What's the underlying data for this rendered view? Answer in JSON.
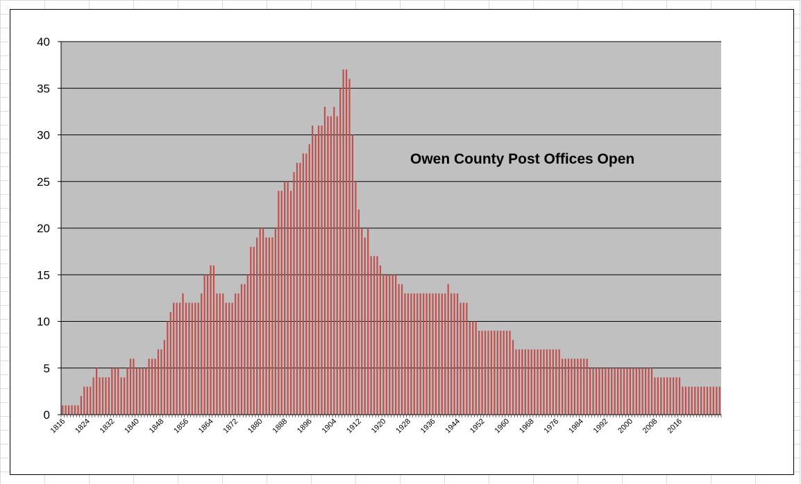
{
  "chart_data": {
    "type": "bar",
    "title": "Owen County Post Offices Open",
    "xlabel": "",
    "ylabel": "",
    "x_start": 1816,
    "x_end": 2018,
    "x_tick_labels": [
      "1816",
      "1824",
      "1832",
      "1840",
      "1848",
      "1856",
      "1864",
      "1872",
      "1880",
      "1888",
      "1896",
      "1904",
      "1912",
      "1920",
      "1928",
      "1936",
      "1944",
      "1952",
      "1960",
      "1968",
      "1976",
      "1984",
      "1992",
      "2000",
      "2008",
      "2016"
    ],
    "y_tick_labels": [
      "0",
      "5",
      "10",
      "15",
      "20",
      "25",
      "30",
      "35",
      "40"
    ],
    "ylim": [
      0,
      40
    ],
    "grid": true,
    "legend": "none",
    "colors": {
      "bar": "#c0504d",
      "plot_bg": "#c0c0c0",
      "grid": "#000000"
    },
    "values": [
      1,
      1,
      1,
      1,
      1,
      1,
      2,
      3,
      3,
      3,
      4,
      5,
      4,
      4,
      4,
      4,
      5,
      5,
      5,
      4,
      4,
      5,
      6,
      6,
      5,
      5,
      5,
      5,
      6,
      6,
      6,
      7,
      7,
      8,
      10,
      11,
      12,
      12,
      12,
      13,
      12,
      12,
      12,
      12,
      12,
      13,
      15,
      15,
      16,
      16,
      13,
      13,
      13,
      12,
      12,
      12,
      13,
      13,
      14,
      14,
      15,
      18,
      18,
      19,
      20,
      20,
      19,
      19,
      19,
      20,
      24,
      24,
      25,
      25,
      24,
      26,
      27,
      27,
      28,
      28,
      29,
      31,
      30,
      31,
      31,
      33,
      32,
      32,
      33,
      32,
      35,
      37,
      37,
      36,
      30,
      25,
      22,
      20,
      19,
      20,
      17,
      17,
      17,
      16,
      15,
      15,
      15,
      15,
      15,
      14,
      14,
      13,
      13,
      13,
      13,
      13,
      13,
      13,
      13,
      13,
      13,
      13,
      13,
      13,
      13,
      14,
      13,
      13,
      13,
      12,
      12,
      12,
      10,
      10,
      10,
      9,
      9,
      9,
      9,
      9,
      9,
      9,
      9,
      9,
      9,
      9,
      8,
      7,
      7,
      7,
      7,
      7,
      7,
      7,
      7,
      7,
      7,
      7,
      7,
      7,
      7,
      7,
      6,
      6,
      6,
      6,
      6,
      6,
      6,
      6,
      6,
      5,
      5,
      5,
      5,
      5,
      5,
      5,
      5,
      5,
      5,
      5,
      5,
      5,
      5,
      5,
      5,
      5,
      5,
      5,
      5,
      5,
      4,
      4,
      4,
      4,
      4,
      4,
      4,
      4,
      4,
      3,
      3,
      3,
      3,
      3,
      3,
      3,
      3,
      3,
      3,
      3,
      3,
      3
    ]
  }
}
